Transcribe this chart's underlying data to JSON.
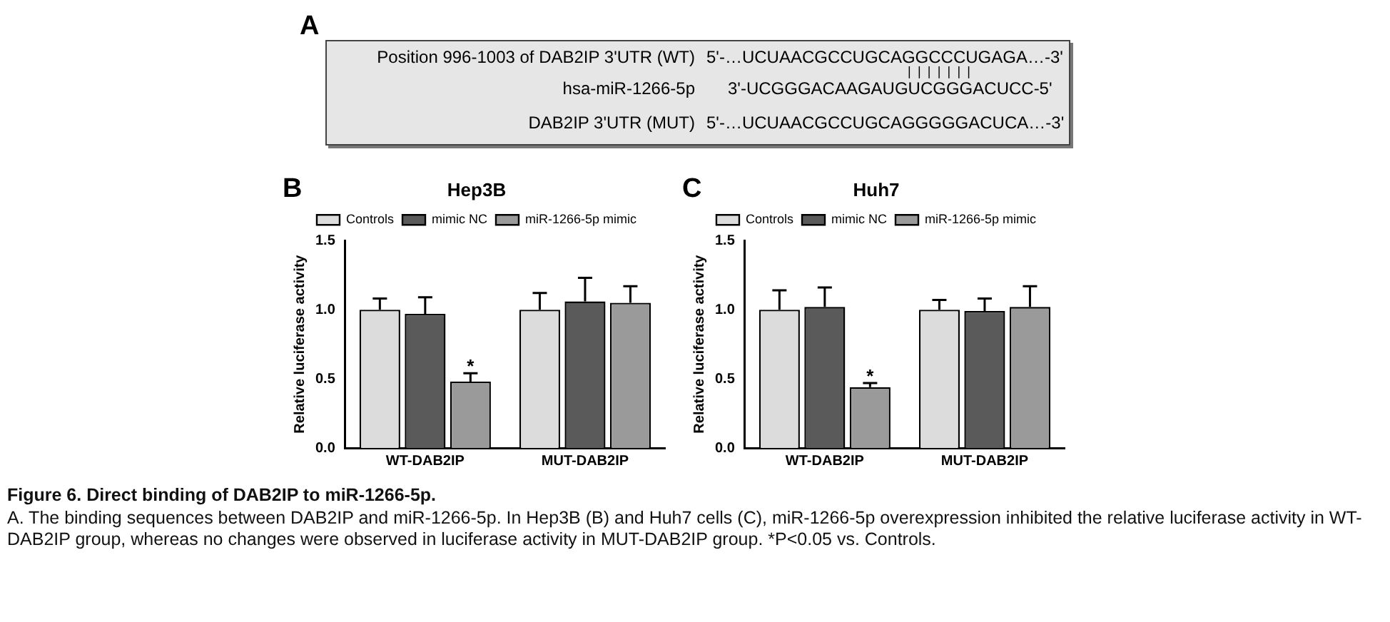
{
  "chart_data": [
    {
      "type": "other",
      "title": "A",
      "annotations": [
        "Position 996-1003 of DAB2IP 3'UTR (WT)",
        "5'-…UCUAACGCCUGCAGGCCCUGAGA…-3'",
        "|||||||",
        "hsa-miR-1266-5p",
        "3'-UCGGGACAAGAUGUCGGGACUCC-5'",
        "DAB2IP 3'UTR (MUT)",
        "5'-…UCUAACGCCUGCAGGGGGACUCA…-3'"
      ]
    },
    {
      "type": "bar",
      "title": "Hep3B",
      "ylabel": "Relative luciferase activity",
      "categories": [
        "WT-DAB2IP",
        "MUT-DAB2IP"
      ],
      "series": [
        {
          "name": "Controls",
          "color": "#dcdcdc",
          "values": [
            1.0,
            1.0
          ],
          "errors": [
            [
              1.0,
              1.08
            ],
            [
              1.0,
              1.12
            ]
          ]
        },
        {
          "name": "mimic NC",
          "color": "#5a5a5a",
          "values": [
            0.97,
            1.06
          ],
          "errors": [
            [
              0.97,
              1.09
            ],
            [
              1.06,
              1.23
            ]
          ]
        },
        {
          "name": "miR-1266-5p mimic",
          "color": "#9a9a9a",
          "values": [
            0.48,
            1.05
          ],
          "errors": [
            [
              0.48,
              0.54
            ],
            [
              1.05,
              1.17
            ]
          ]
        }
      ],
      "ylim": [
        0,
        1.5
      ],
      "yticks": [
        {
          "value": 0,
          "label": "0.0"
        },
        {
          "value": 0.5,
          "label": "0.5"
        },
        {
          "value": 1,
          "label": "1.0"
        },
        {
          "value": 1.5,
          "label": "1.5"
        }
      ],
      "grid": false,
      "legend": "top",
      "annotations": [
        "B",
        "*"
      ]
    },
    {
      "type": "bar",
      "title": "Huh7",
      "ylabel": "Relative luciferase activity",
      "categories": [
        "WT-DAB2IP",
        "MUT-DAB2IP"
      ],
      "series": [
        {
          "name": "Controls",
          "color": "#dcdcdc",
          "values": [
            1.0,
            1.0
          ],
          "errors": [
            [
              1.0,
              1.14
            ],
            [
              1.0,
              1.07
            ]
          ]
        },
        {
          "name": "mimic NC",
          "color": "#5a5a5a",
          "values": [
            1.02,
            0.99
          ],
          "errors": [
            [
              1.02,
              1.16
            ],
            [
              0.99,
              1.08
            ]
          ]
        },
        {
          "name": "miR-1266-5p mimic",
          "color": "#9a9a9a",
          "values": [
            0.44,
            1.02
          ],
          "errors": [
            [
              0.44,
              0.47
            ],
            [
              1.02,
              1.17
            ]
          ]
        }
      ],
      "ylim": [
        0,
        1.5
      ],
      "yticks": [
        {
          "value": 0,
          "label": "0.0"
        },
        {
          "value": 0.5,
          "label": "0.5"
        },
        {
          "value": 1,
          "label": "1.0"
        },
        {
          "value": 1.5,
          "label": "1.5"
        }
      ],
      "grid": false,
      "legend": "top",
      "annotations": [
        "C",
        "*"
      ]
    },
    {
      "type": "other",
      "title": "Figure 6. Direct binding of DAB2IP to miR-1266-5p.",
      "annotations": [
        "A. The binding sequences between DAB2IP and miR-1266-5p. In Hep3B (B) and Huh7 cells (C), miR-1266-5p overexpression inhibited the relative luciferase activity in WT-DAB2IP group, whereas no changes were observed in luciferase activity in MUT-DAB2IP group. *P<0.05 vs. Controls."
      ]
    }
  ]
}
